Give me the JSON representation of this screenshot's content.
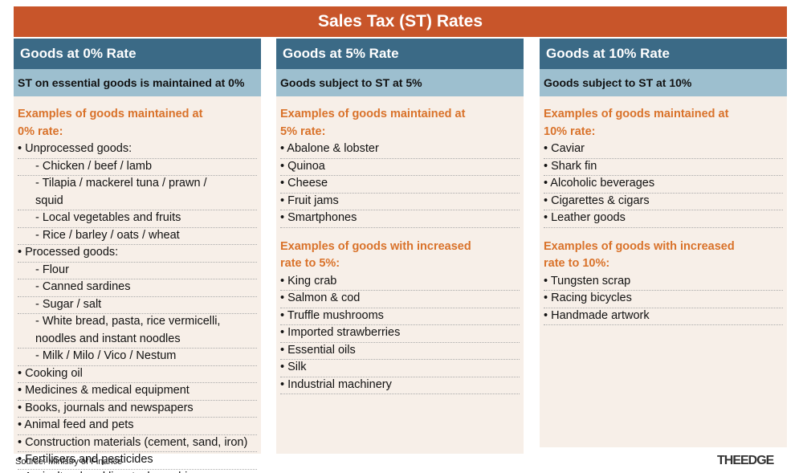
{
  "title": "Sales Tax (ST) Rates",
  "columns": [
    {
      "header": "Goods at 0% Rate",
      "subheader": "ST on essential goods is maintained at 0%",
      "sections": [
        {
          "heading": "Examples of goods maintained at 0% rate:",
          "items": [
            "• Unprocessed goods:",
            "- Chicken / beef / lamb",
            "- Tilapia / mackerel tuna / prawn / squid",
            "- Local vegetables and fruits",
            "- Rice / barley / oats / wheat",
            "• Processed goods:",
            "- Flour",
            "- Canned sardines",
            "- Sugar / salt",
            "- White bread, pasta, rice vermicelli, noodles and instant noodles",
            "- Milk / Milo / Vico / Nestum",
            "• Cooking oil",
            "• Medicines & medical equipment",
            "• Books, journals and newspapers",
            "• Animal feed and pets",
            "• Construction materials (cement, sand, iron)",
            "• Fertilisers and pesticides",
            "• Agricultural and livestock machinery"
          ]
        }
      ]
    },
    {
      "header": "Goods at 5% Rate",
      "subheader": "Goods subject to ST at 5%",
      "sections": [
        {
          "heading": "Examples of goods maintained at 5% rate:",
          "items": [
            "• Abalone & lobster",
            "• Quinoa",
            "• Cheese",
            "• Fruit jams",
            "• Smartphones"
          ]
        },
        {
          "heading": "Examples of goods with increased rate to 5%:",
          "items": [
            "• King crab",
            "• Salmon & cod",
            "• Truffle mushrooms",
            "• Imported strawberries",
            "• Essential oils",
            "• Silk",
            "• Industrial machinery"
          ]
        }
      ]
    },
    {
      "header": "Goods at 10% Rate",
      "subheader": "Goods subject to ST at 10%",
      "sections": [
        {
          "heading": "Examples of goods maintained at 10% rate:",
          "items": [
            "• Caviar",
            "• Shark fin",
            "• Alcoholic beverages",
            "• Cigarettes & cigars",
            "• Leather goods"
          ]
        },
        {
          "heading": "Examples of goods with increased rate to 10%:",
          "items": [
            "• Tungsten scrap",
            "• Racing bicycles",
            "• Handmade artwork"
          ]
        }
      ]
    }
  ],
  "source": "Source: Ministry of Finance",
  "logo": "THEEDGE"
}
